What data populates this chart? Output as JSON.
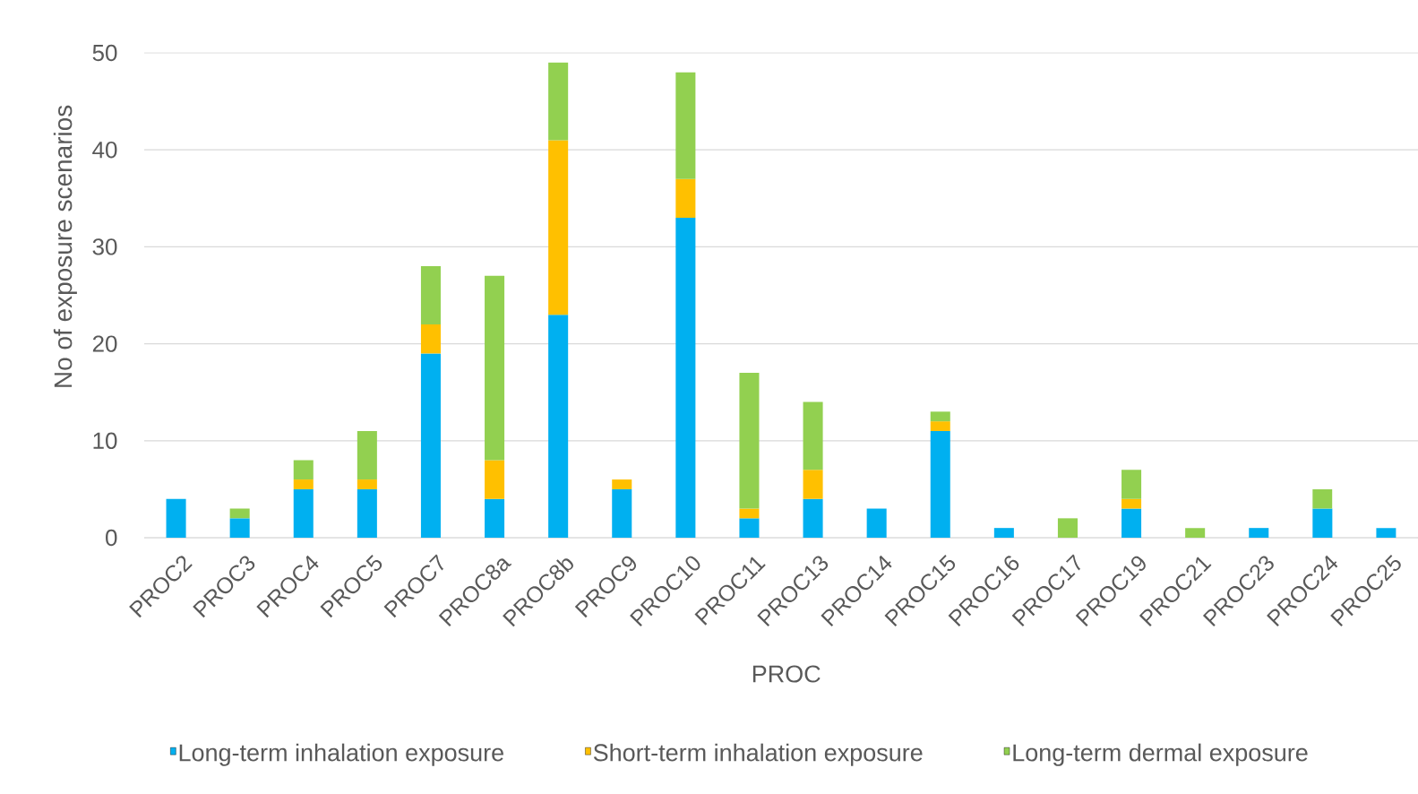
{
  "chart_data": {
    "type": "bar",
    "stacked": true,
    "xlabel": "PROC",
    "ylabel": "No of exposure scenarios",
    "categories": [
      "PROC2",
      "PROC3",
      "PROC4",
      "PROC5",
      "PROC7",
      "PROC8a",
      "PROC8b",
      "PROC9",
      "PROC10",
      "PROC11",
      "PROC13",
      "PROC14",
      "PROC15",
      "PROC16",
      "PROC17",
      "PROC19",
      "PROC21",
      "PROC23",
      "PROC24",
      "PROC25"
    ],
    "series": [
      {
        "name": "Long-term inhalation exposure",
        "color": "#00b0f0",
        "values": [
          4,
          2,
          5,
          5,
          19,
          4,
          23,
          5,
          33,
          2,
          4,
          3,
          11,
          1,
          0,
          3,
          0,
          1,
          3,
          1
        ]
      },
      {
        "name": "Short-term inhalation exposure",
        "color": "#ffc000",
        "values": [
          0,
          0,
          1,
          1,
          3,
          4,
          18,
          1,
          4,
          1,
          3,
          0,
          1,
          0,
          0,
          1,
          0,
          0,
          0,
          0
        ]
      },
      {
        "name": "Long-term dermal exposure",
        "color": "#92d050",
        "values": [
          0,
          1,
          2,
          5,
          6,
          19,
          8,
          0,
          11,
          14,
          7,
          0,
          1,
          0,
          2,
          3,
          1,
          0,
          2,
          0
        ]
      }
    ],
    "ylim": [
      0,
      50
    ],
    "yticks": [
      0,
      10,
      20,
      30,
      40,
      50
    ],
    "grid": "y",
    "legend": "bottom"
  }
}
